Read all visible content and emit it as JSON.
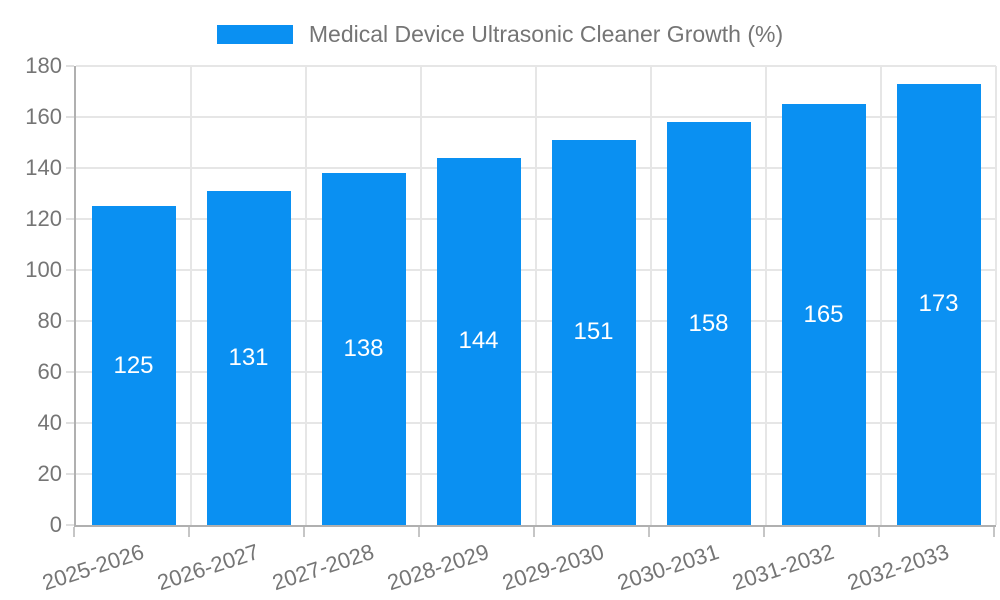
{
  "chart_data": {
    "type": "bar",
    "title": "",
    "series_name": "Medical Device Ultrasonic Cleaner Growth (%)",
    "categories": [
      "2025-2026",
      "2026-2027",
      "2027-2028",
      "2028-2029",
      "2029-2030",
      "2030-2031",
      "2031-2032",
      "2032-2033"
    ],
    "values": [
      125,
      131,
      138,
      144,
      151,
      158,
      165,
      173
    ],
    "bar_labels": [
      "125",
      "131",
      "138",
      "144",
      "151",
      "158",
      "165",
      "173"
    ],
    "ylim": [
      0,
      180
    ],
    "yticks": [
      0,
      20,
      40,
      60,
      80,
      100,
      120,
      140,
      160,
      180
    ],
    "grid": true,
    "legend_position": "top-center",
    "colors": {
      "bar": "#0a90f2",
      "grid": "#e6e6e6",
      "axis": "#b0b0b0",
      "tick_text": "#757575",
      "bar_label_text": "#ffffff",
      "background": "#ffffff"
    }
  }
}
